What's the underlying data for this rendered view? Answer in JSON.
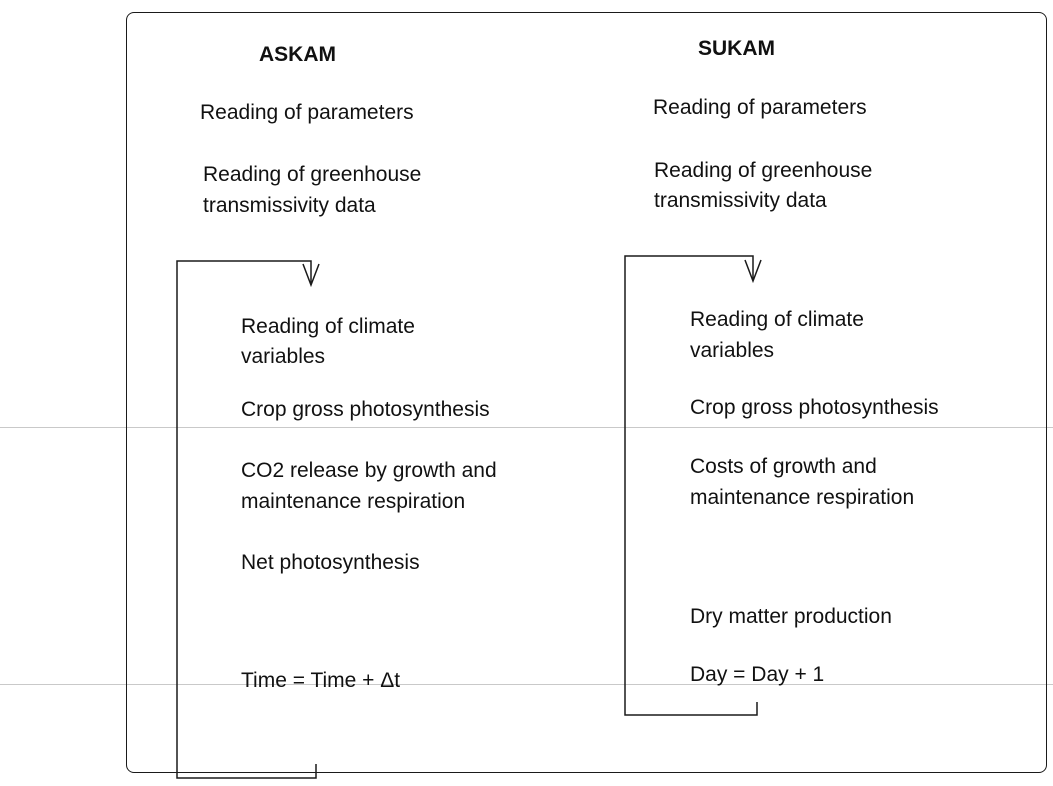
{
  "askam": {
    "title": "ASKAM",
    "reading_parameters": "Reading of parameters",
    "transmissivity_1": "Reading of greenhouse",
    "transmissivity_2": "transmissivity data",
    "climate_1": "Reading of climate",
    "climate_2": "variables",
    "gross_photosynthesis": "Crop gross photosynthesis",
    "co2_release_1": "CO2 release by growth and",
    "co2_release_2": "maintenance respiration",
    "net_photosynthesis": "Net photosynthesis",
    "time_step": "Time = Time + Δt"
  },
  "sukam": {
    "title": "SUKAM",
    "reading_parameters": "Reading of parameters",
    "transmissivity_1": "Reading of greenhouse",
    "transmissivity_2": "transmissivity data",
    "climate_1": "Reading of climate",
    "climate_2": "variables",
    "gross_photosynthesis": "Crop gross photosynthesis",
    "costs_1": "Costs of growth and",
    "costs_2": "maintenance respiration",
    "dry_matter": "Dry matter production",
    "day_step": "Day = Day + 1"
  },
  "colors": {
    "ink": "#1a1a1a",
    "scan_line": "#c9c9c9"
  }
}
